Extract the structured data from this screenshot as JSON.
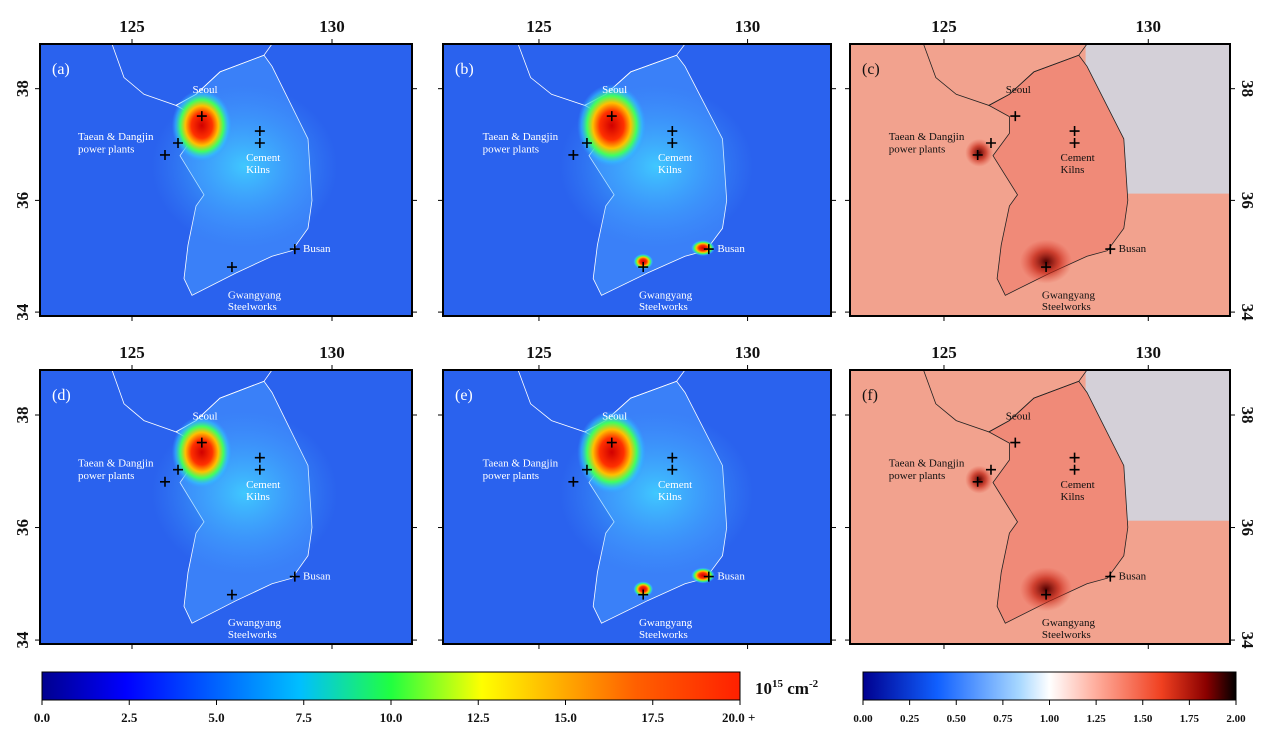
{
  "panels": [
    {
      "label": "(a)"
    },
    {
      "label": "(b)"
    },
    {
      "label": "(c)"
    },
    {
      "label": "(d)"
    },
    {
      "label": "(e)"
    },
    {
      "label": "(f)"
    }
  ],
  "place_labels": {
    "seoul": "Seoul",
    "power_plants": [
      "Taean & Dangjin",
      "power plants"
    ],
    "cement": [
      "Cement",
      "Kilns"
    ],
    "busan": "Busan",
    "steelworks": [
      "Gwangyang",
      "Steelworks"
    ]
  },
  "lon_ticks": [
    125,
    130
  ],
  "lat_ticks": [
    38,
    36,
    34
  ],
  "colorbar_left": {
    "ticks": [
      {
        "value": 0,
        "label": "0.0"
      },
      {
        "value": 2.5,
        "label": "2.5"
      },
      {
        "value": 5,
        "label": "5.0"
      },
      {
        "value": 7.5,
        "label": "7.5"
      },
      {
        "value": 10,
        "label": "10.0"
      },
      {
        "value": 12.5,
        "label": "12.5"
      },
      {
        "value": 15,
        "label": "15.0"
      },
      {
        "value": 17.5,
        "label": "17.5"
      },
      {
        "value": 20,
        "label": "20.0 +"
      }
    ],
    "unit": {
      "base": "10",
      "exp": "15",
      "rest": " cm",
      "exp2": "-2"
    }
  },
  "colorbar_right": {
    "ticks": [
      {
        "value": 0,
        "label": "0.00"
      },
      {
        "value": 0.25,
        "label": "0.25"
      },
      {
        "value": 0.5,
        "label": "0.50"
      },
      {
        "value": 0.75,
        "label": "0.75"
      },
      {
        "value": 1,
        "label": "1.00"
      },
      {
        "value": 1.25,
        "label": "1.25"
      },
      {
        "value": 1.5,
        "label": "1.50"
      },
      {
        "value": 1.75,
        "label": "1.75"
      },
      {
        "value": 2,
        "label": "2.00"
      }
    ]
  }
}
